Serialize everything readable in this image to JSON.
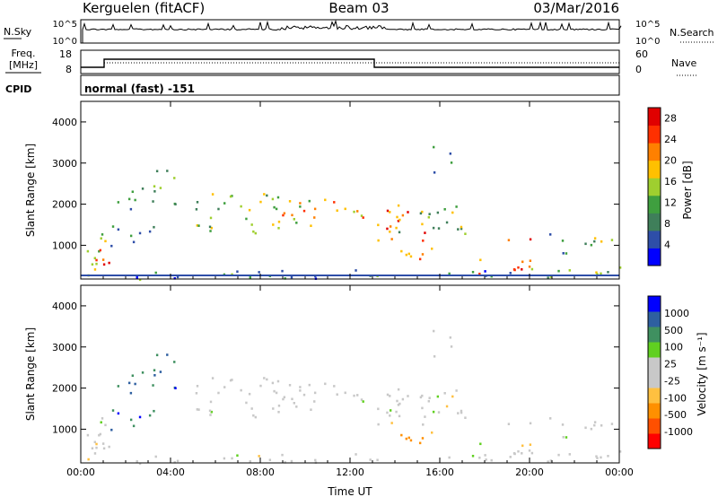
{
  "header": {
    "station": "Kerguelen (fitACF)",
    "beam": "Beam 03",
    "date": "03/Mar/2016"
  },
  "nsky_panel": {
    "left_label": "N.Sky",
    "right_label": "N.Search",
    "left_ticks": [
      "10^5",
      "10^0"
    ],
    "right_ticks": [
      "10^5",
      "10^0"
    ]
  },
  "freq_panel": {
    "left_label_line1": "Freq.",
    "left_label_line2": "[MHz]",
    "right_label": "Nave",
    "left_ticks": [
      "18",
      "8"
    ],
    "right_ticks": [
      "60",
      "0"
    ]
  },
  "cpid_panel": {
    "label": "CPID",
    "text": "normal (fast) -151"
  },
  "colors": {
    "power_scale": [
      "#0000ff",
      "#2e4ea8",
      "#3f7f5a",
      "#3f9f3f",
      "#9fcf2f",
      "#ffc000",
      "#ff8000",
      "#ff3000",
      "#e00000"
    ],
    "velocity_scale": [
      "#ff0000",
      "#ff5000",
      "#ff9000",
      "#ffc040",
      "#c8c8c8",
      "#c8c8c8",
      "#60d020",
      "#3f9060",
      "#2e5fa0",
      "#0000ff"
    ]
  },
  "chart_data": [
    {
      "type": "heatmap",
      "panel": "power",
      "ylabel": "Slant Range [km]",
      "ylim": [
        180,
        4500
      ],
      "yticks": [
        "1000",
        "2000",
        "3000",
        "4000"
      ],
      "xlim": [
        0,
        24
      ],
      "xticks": [
        "00:00",
        "04:00",
        "08:00",
        "12:00",
        "16:00",
        "20:00",
        "00:00"
      ],
      "colorbar_label": "Power [dB]",
      "colorbar_ticks": [
        "4",
        "8",
        "12",
        "16",
        "20",
        "24",
        "28"
      ],
      "colorbar_range": [
        0,
        30
      ]
    },
    {
      "type": "heatmap",
      "panel": "velocity",
      "ylabel": "Slant Range [km]",
      "ylim": [
        180,
        4500
      ],
      "yticks": [
        "1000",
        "2000",
        "3000",
        "4000"
      ],
      "xlim": [
        0,
        24
      ],
      "xticks": [
        "00:00",
        "04:00",
        "08:00",
        "12:00",
        "16:00",
        "20:00",
        "00:00"
      ],
      "xlabel": "Time UT",
      "colorbar_label": "Velocity [m s⁻¹]",
      "colorbar_ticks": [
        "-1000",
        "-500",
        "-100",
        "-25",
        "25",
        "100",
        "500",
        "1000"
      ],
      "colorbar_range": [
        -1250,
        1250
      ]
    }
  ]
}
